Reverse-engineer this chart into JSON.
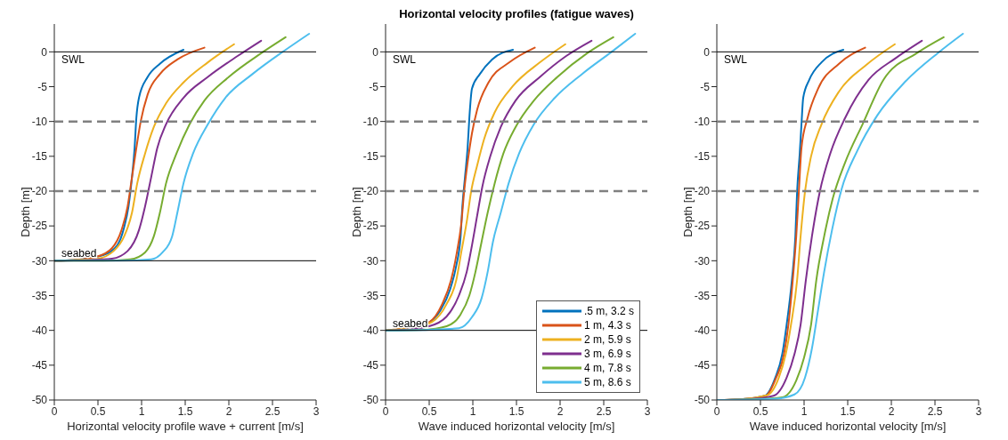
{
  "chart_data": [
    {
      "type": "line",
      "xlabel": "Horizontal velocity profile wave + current [m/s]",
      "ylabel": "Depth [m]",
      "xlim": [
        0,
        3
      ],
      "xticks": [
        0,
        0.5,
        1,
        1.5,
        2,
        2.5,
        3
      ],
      "ylim": [
        -50,
        4
      ],
      "yticks": [
        -50,
        -45,
        -40,
        -35,
        -30,
        -25,
        -20,
        -15,
        -10,
        -5,
        0
      ],
      "grid": false,
      "legend": false,
      "marker": "none",
      "ref_lines": [
        {
          "axis": "y",
          "value": 0,
          "label": "SWL",
          "color": "#000000"
        },
        {
          "axis": "y",
          "value": -30,
          "label": "seabed",
          "color": "#000000"
        },
        {
          "axis": "y",
          "value": -10,
          "color": "#808080",
          "line_style": "dashed"
        },
        {
          "axis": "y",
          "value": -20,
          "color": "#808080",
          "line_style": "dashed"
        }
      ],
      "series": [
        {
          "color": "#0072bd",
          "x": [
            1.48,
            1.21,
            1.07,
            0.97,
            0.94,
            0.92,
            0.89,
            0.85,
            0.8,
            0.72,
            0.56,
            0.22,
            0
          ],
          "values": [
            0.3,
            -1.7,
            -3.6,
            -6.6,
            -9.5,
            -13.8,
            -18,
            -22.2,
            -25.2,
            -27.8,
            -29.2,
            -29.9,
            -30
          ]
        },
        {
          "color": "#d95319",
          "x": [
            1.72,
            1.41,
            1.21,
            1.07,
            0.99,
            0.94,
            0.89,
            0.84,
            0.77,
            0.66,
            0.49,
            0.22,
            0
          ],
          "values": [
            0.6,
            -1.1,
            -3.2,
            -6.1,
            -10,
            -13.8,
            -18,
            -22.2,
            -25.6,
            -28.2,
            -29.4,
            -29.9,
            -30
          ]
        },
        {
          "color": "#edb120",
          "x": [
            2.06,
            1.76,
            1.48,
            1.28,
            1.14,
            1.04,
            0.95,
            0.89,
            0.8,
            0.68,
            0.49,
            0
          ],
          "values": [
            1.1,
            -1.5,
            -4.4,
            -7.4,
            -10.8,
            -14.6,
            -18.9,
            -23.1,
            -26.5,
            -28.6,
            -29.7,
            -30
          ]
        },
        {
          "color": "#7e2f8e",
          "x": [
            2.37,
            2.1,
            1.76,
            1.48,
            1.28,
            1.18,
            1.11,
            1.04,
            0.97,
            0.84,
            0.66,
            0.39,
            0
          ],
          "values": [
            1.6,
            -0.6,
            -3.6,
            -6.6,
            -10.4,
            -13.8,
            -18,
            -22.2,
            -25.6,
            -28.6,
            -29.7,
            -29.9,
            -30
          ]
        },
        {
          "color": "#77ac30",
          "x": [
            2.65,
            2.37,
            2,
            1.72,
            1.55,
            1.4,
            1.28,
            1.21,
            1.14,
            1.04,
            0.87,
            0.56,
            0
          ],
          "values": [
            2.1,
            -0.2,
            -3.6,
            -7,
            -10.4,
            -14.6,
            -18.9,
            -23.1,
            -26.5,
            -28.8,
            -29.8,
            -30,
            -30
          ]
        },
        {
          "color": "#4dbeee",
          "x": [
            2.92,
            2.64,
            2.27,
            1.96,
            1.76,
            1.59,
            1.48,
            1.41,
            1.35,
            1.24,
            1.11,
            0.73,
            0
          ],
          "values": [
            2.6,
            0.2,
            -3.2,
            -6.6,
            -10.4,
            -14.6,
            -18.9,
            -23.1,
            -26.5,
            -28.8,
            -29.8,
            -30,
            -30
          ]
        }
      ]
    },
    {
      "type": "line",
      "title": "Horizontal velocity profiles (fatigue waves)",
      "xlabel": "Wave induced horizontal velocity [m/s]",
      "ylabel": "Depth [m]",
      "xlim": [
        0,
        3
      ],
      "xticks": [
        0,
        0.5,
        1,
        1.5,
        2,
        2.5,
        3
      ],
      "ylim": [
        -50,
        4
      ],
      "yticks": [
        -50,
        -45,
        -40,
        -35,
        -30,
        -25,
        -20,
        -15,
        -10,
        -5,
        0
      ],
      "grid": false,
      "legend": "bottom right",
      "marker": "none",
      "ref_lines": [
        {
          "axis": "y",
          "value": 0,
          "label": "SWL",
          "color": "#000000"
        },
        {
          "axis": "y",
          "value": -40,
          "label": "seabed",
          "color": "#000000"
        },
        {
          "axis": "y",
          "value": -10,
          "color": "#808080",
          "line_style": "dashed"
        },
        {
          "axis": "y",
          "value": -20,
          "color": "#808080",
          "line_style": "dashed"
        }
      ],
      "series": [
        {
          "name": ".5 m, 3.2 s",
          "color": "#0072bd",
          "x": [
            1.46,
            1.22,
            1.08,
            0.99,
            0.96,
            0.94,
            0.91,
            0.88,
            0.86,
            0.81,
            0.74,
            0.63,
            0.46
          ],
          "values": [
            0.3,
            -1.1,
            -3.2,
            -5.3,
            -9.5,
            -13.8,
            -18,
            -22.2,
            -26.5,
            -30.7,
            -34.1,
            -37.1,
            -39.2
          ]
        },
        {
          "name": "1 m, 4.3 s",
          "color": "#d95319",
          "x": [
            1.71,
            1.42,
            1.18,
            1.05,
            0.99,
            0.94,
            0.9,
            0.87,
            0.82,
            0.75,
            0.65,
            0.5,
            0.22,
            0
          ],
          "values": [
            0.6,
            -1.5,
            -4.4,
            -8.3,
            -11.7,
            -15.9,
            -20.1,
            -24.4,
            -28.6,
            -32.8,
            -36.2,
            -38.8,
            -39.7,
            -40
          ]
        },
        {
          "name": "2 m, 5.9 s",
          "color": "#edb120",
          "x": [
            2.06,
            1.77,
            1.46,
            1.25,
            1.13,
            1.05,
            0.98,
            0.93,
            0.87,
            0.81,
            0.7,
            0.53,
            0.26,
            0
          ],
          "values": [
            1.1,
            -1.5,
            -4.9,
            -8.7,
            -12.5,
            -16.3,
            -20.1,
            -24.4,
            -28.6,
            -32.8,
            -36.2,
            -38.8,
            -39.7,
            -40
          ]
        },
        {
          "name": "3 m, 6.9 s",
          "color": "#7e2f8e",
          "x": [
            2.36,
            2.07,
            1.77,
            1.49,
            1.32,
            1.2,
            1.11,
            1.05,
            0.99,
            0.93,
            0.84,
            0.7,
            0.5,
            0.19,
            0
          ],
          "values": [
            1.6,
            -0.6,
            -3.6,
            -7,
            -10.8,
            -15,
            -19.3,
            -23.5,
            -27.8,
            -31.6,
            -35,
            -38,
            -39.4,
            -39.9,
            -40
          ]
        },
        {
          "name": "4 m, 7.8 s",
          "color": "#77ac30",
          "x": [
            2.61,
            2.31,
            1.97,
            1.7,
            1.49,
            1.35,
            1.25,
            1.17,
            1.1,
            1.03,
            0.96,
            0.86,
            0.7,
            0.43,
            0
          ],
          "values": [
            2.1,
            -0.2,
            -3.6,
            -7,
            -10.8,
            -14.6,
            -18.9,
            -23.1,
            -27.3,
            -31.6,
            -35,
            -37.7,
            -39.4,
            -39.9,
            -40
          ]
        },
        {
          "name": "5 m, 8.6 s",
          "color": "#4dbeee",
          "x": [
            2.86,
            2.59,
            2.25,
            1.94,
            1.7,
            1.53,
            1.41,
            1.32,
            1.23,
            1.17,
            1.1,
            0.99,
            0.84,
            0.5,
            0
          ],
          "values": [
            2.6,
            0,
            -3.2,
            -6.6,
            -10.4,
            -14.6,
            -18.9,
            -23.1,
            -27.3,
            -31.6,
            -35.4,
            -38.1,
            -39.7,
            -39.9,
            -40
          ]
        }
      ]
    },
    {
      "type": "line",
      "xlabel": "Wave induced horizontal velocity [m/s]",
      "ylabel": "Depth [m]",
      "xlim": [
        0,
        3
      ],
      "xticks": [
        0,
        0.5,
        1,
        1.5,
        2,
        2.5,
        3
      ],
      "ylim": [
        -50,
        4
      ],
      "yticks": [
        -50,
        -45,
        -40,
        -35,
        -30,
        -25,
        -20,
        -15,
        -10,
        -5,
        0
      ],
      "grid": false,
      "legend": false,
      "marker": "none",
      "ref_lines": [
        {
          "axis": "y",
          "value": 0,
          "label": "SWL",
          "color": "#000000"
        },
        {
          "axis": "y",
          "value": -10,
          "color": "#808080",
          "line_style": "dashed"
        },
        {
          "axis": "y",
          "value": -20,
          "color": "#808080",
          "line_style": "dashed"
        }
      ],
      "series": [
        {
          "color": "#0072bd",
          "x": [
            1.45,
            1.2,
            1.06,
            0.99,
            0.97,
            0.95,
            0.92,
            0.9,
            0.86,
            0.8,
            0.75,
            0.67,
            0.55,
            0.27,
            0
          ],
          "values": [
            0.3,
            -1.5,
            -4,
            -6.6,
            -10.4,
            -14.6,
            -20.1,
            -26.5,
            -32.8,
            -39.2,
            -43.4,
            -46.8,
            -49.4,
            -49.9,
            -50
          ]
        },
        {
          "color": "#d95319",
          "x": [
            1.7,
            1.4,
            1.16,
            1.04,
            0.97,
            0.94,
            0.91,
            0.87,
            0.82,
            0.77,
            0.68,
            0.56,
            0.27,
            0
          ],
          "values": [
            0.6,
            -1.7,
            -5.3,
            -9.5,
            -13.8,
            -20.1,
            -26.5,
            -32.8,
            -39.2,
            -43.4,
            -46.8,
            -49.4,
            -49.9,
            -50
          ]
        },
        {
          "color": "#edb120",
          "x": [
            2.04,
            1.71,
            1.4,
            1.2,
            1.08,
            1.01,
            0.96,
            0.92,
            0.85,
            0.79,
            0.71,
            0.58,
            0.27,
            0
          ],
          "values": [
            1.1,
            -1.9,
            -5.7,
            -10.4,
            -15,
            -20.1,
            -26.5,
            -32.8,
            -39.2,
            -43.4,
            -46.8,
            -49.3,
            -49.9,
            -50
          ]
        },
        {
          "color": "#7e2f8e",
          "x": [
            2.35,
            2.05,
            1.74,
            1.47,
            1.3,
            1.18,
            1.09,
            1.02,
            0.96,
            0.89,
            0.8,
            0.65,
            0.34,
            0
          ],
          "values": [
            1.6,
            -0.9,
            -4,
            -9.5,
            -14.6,
            -20.1,
            -26.5,
            -32.8,
            -39.2,
            -43.4,
            -46.8,
            -49.4,
            -49.9,
            -50
          ]
        },
        {
          "color": "#77ac30",
          "x": [
            2.6,
            2.29,
            1.91,
            1.67,
            1.47,
            1.33,
            1.23,
            1.14,
            1.08,
            1,
            0.91,
            0.75,
            0.38,
            0
          ],
          "values": [
            2.1,
            -0.2,
            -4,
            -10.4,
            -15.9,
            -21,
            -26.5,
            -32.8,
            -39.2,
            -43.9,
            -47.2,
            -49.6,
            -49.9,
            -50
          ]
        },
        {
          "color": "#4dbeee",
          "x": [
            2.82,
            2.53,
            2.15,
            1.84,
            1.61,
            1.43,
            1.32,
            1.23,
            1.16,
            1.09,
            1.01,
            0.89,
            0.68,
            0
          ],
          "values": [
            2.6,
            -0.2,
            -4.4,
            -9.1,
            -14.2,
            -19.7,
            -25.6,
            -31.6,
            -37.1,
            -42.6,
            -46.8,
            -49.2,
            -49.8,
            -50
          ]
        }
      ]
    }
  ]
}
